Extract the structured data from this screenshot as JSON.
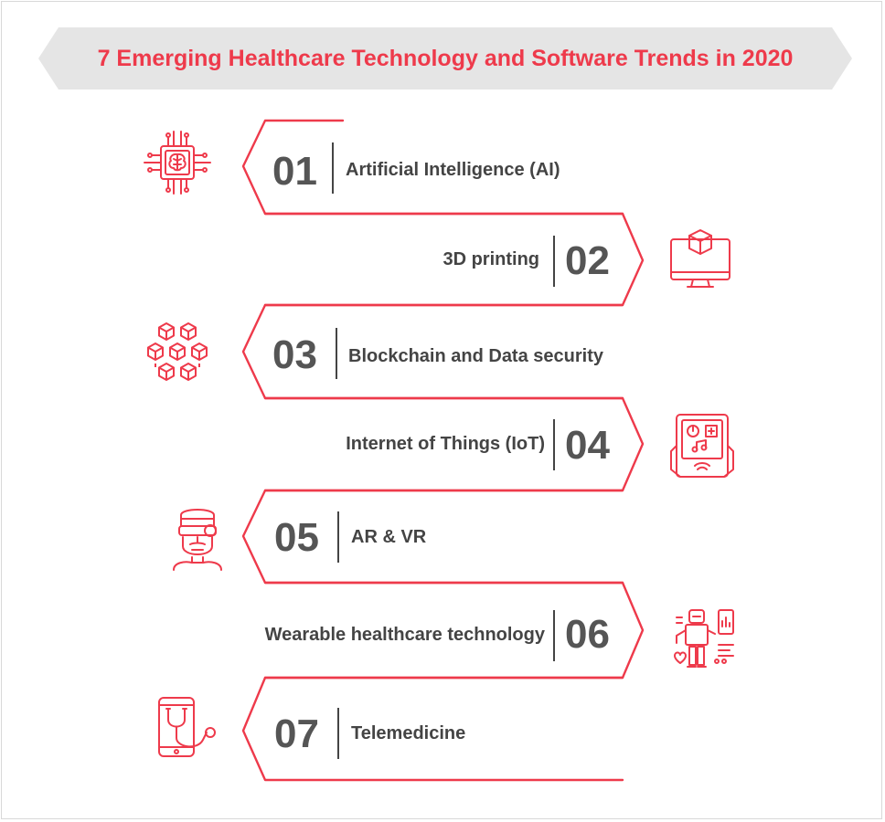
{
  "title": "7 Emerging Healthcare Technology and Software Trends in 2020",
  "colors": {
    "accent": "#ee3a4b",
    "banner_bg": "#e5e5e5",
    "text": "#444444",
    "number": "#555555"
  },
  "items": [
    {
      "number": "01",
      "label": "Artificial Intelligence (AI)",
      "icon": "ai-chip-brain-icon"
    },
    {
      "number": "02",
      "label": "3D printing",
      "icon": "3d-printing-monitor-icon"
    },
    {
      "number": "03",
      "label": "Blockchain and Data security",
      "icon": "blockchain-icon"
    },
    {
      "number": "04",
      "label": "Internet of Things (IoT)",
      "icon": "iot-tablet-icon"
    },
    {
      "number": "05",
      "label": "AR & VR",
      "icon": "ar-vr-person-icon"
    },
    {
      "number": "06",
      "label": "Wearable healthcare technology",
      "icon": "wearable-tech-icon"
    },
    {
      "number": "07",
      "label": "Telemedicine",
      "icon": "telemedicine-phone-stethoscope-icon"
    }
  ]
}
